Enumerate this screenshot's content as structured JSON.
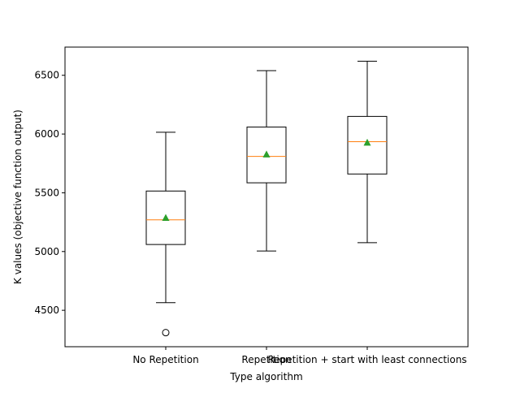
{
  "chart_data": {
    "type": "box",
    "xlabel": "Type algorithm",
    "ylabel": "K values (objective function output)",
    "ylim": [
      4190,
      6740
    ],
    "yticks": [
      4500,
      5000,
      5500,
      6000,
      6500
    ],
    "categories": [
      "No Repetition",
      "Repetition",
      "Repetition + start with least connections"
    ],
    "boxes": [
      {
        "whislo": 4565,
        "q1": 5060,
        "med": 5270,
        "q3": 5515,
        "whishi": 6015,
        "mean": 5285,
        "fliers": [
          4310
        ]
      },
      {
        "whislo": 5005,
        "q1": 5585,
        "med": 5810,
        "q3": 6060,
        "whishi": 6540,
        "mean": 5825,
        "fliers": []
      },
      {
        "whislo": 5075,
        "q1": 5660,
        "med": 5935,
        "q3": 6150,
        "whishi": 6620,
        "mean": 5925,
        "fliers": []
      }
    ],
    "grid": false,
    "colors": {
      "box": "#000000",
      "median": "#ff7f0e",
      "mean": "#2ca02c",
      "flier": "#000000"
    }
  }
}
